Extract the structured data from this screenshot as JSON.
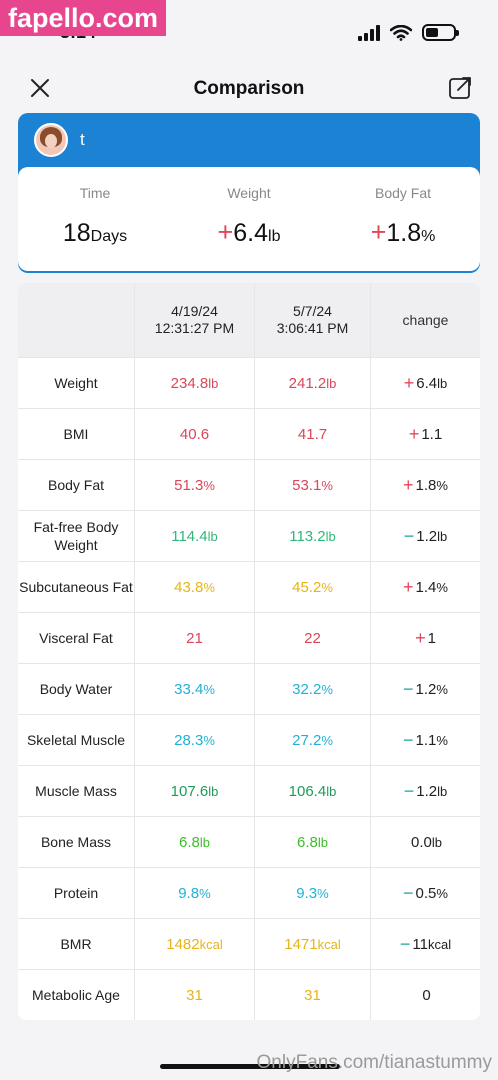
{
  "watermark_top": "fapello.com",
  "watermark_bottom": "OnlyFans.com/tianastummy",
  "status": {
    "time": "3:14"
  },
  "nav": {
    "title": "Comparison",
    "close_icon": "close-icon",
    "share_icon": "share-icon"
  },
  "user": {
    "name": "t"
  },
  "summary": [
    {
      "label": "Time",
      "value": "18",
      "sign": "",
      "unit": "Days"
    },
    {
      "label": "Weight",
      "value": "6.4",
      "sign": "+",
      "unit": "lb"
    },
    {
      "label": "Body Fat",
      "value": "1.8",
      "sign": "+",
      "unit": "%"
    }
  ],
  "table": {
    "header": {
      "date1": "4/19/24",
      "time1": "12:31:27 PM",
      "date2": "5/7/24",
      "time2": "3:06:41 PM",
      "change": "change"
    },
    "colors": {
      "red": "#d9475a",
      "green": "#2fb87a",
      "yellow": "#e6b517",
      "cyan": "#1fb2d6",
      "darkgreen": "#1f9a5a",
      "brightgreen": "#3cbf2a",
      "plus": "#e0485a",
      "minus": "#1aa89a"
    },
    "rows": [
      {
        "label": "Weight",
        "v1": "234.8",
        "v2": "241.2",
        "unit": "lb",
        "color": "red",
        "sign": "+",
        "change": "6.4",
        "change_unit": "lb"
      },
      {
        "label": "BMI",
        "v1": "40.6",
        "v2": "41.7",
        "unit": "",
        "color": "red",
        "sign": "+",
        "change": "1.1",
        "change_unit": ""
      },
      {
        "label": "Body Fat",
        "v1": "51.3",
        "v2": "53.1",
        "unit": "%",
        "color": "red",
        "sign": "+",
        "change": "1.8",
        "change_unit": "%"
      },
      {
        "label": "Fat-free Body Weight",
        "v1": "114.4",
        "v2": "113.2",
        "unit": "lb",
        "color": "green",
        "sign": "−",
        "change": "1.2",
        "change_unit": "lb"
      },
      {
        "label": "Subcutaneous Fat",
        "v1": "43.8",
        "v2": "45.2",
        "unit": "%",
        "color": "yellow",
        "sign": "+",
        "change": "1.4",
        "change_unit": "%"
      },
      {
        "label": "Visceral Fat",
        "v1": "21",
        "v2": "22",
        "unit": "",
        "color": "red",
        "sign": "+",
        "change": "1",
        "change_unit": ""
      },
      {
        "label": "Body Water",
        "v1": "33.4",
        "v2": "32.2",
        "unit": "%",
        "color": "cyan",
        "sign": "−",
        "change": "1.2",
        "change_unit": "%"
      },
      {
        "label": "Skeletal Muscle",
        "v1": "28.3",
        "v2": "27.2",
        "unit": "%",
        "color": "cyan",
        "sign": "−",
        "change": "1.1",
        "change_unit": "%"
      },
      {
        "label": "Muscle Mass",
        "v1": "107.6",
        "v2": "106.4",
        "unit": "lb",
        "color": "darkgreen",
        "sign": "−",
        "change": "1.2",
        "change_unit": "lb"
      },
      {
        "label": "Bone Mass",
        "v1": "6.8",
        "v2": "6.8",
        "unit": "lb",
        "color": "brightgreen",
        "sign": "",
        "change": "0.0",
        "change_unit": "lb"
      },
      {
        "label": "Protein",
        "v1": "9.8",
        "v2": "9.3",
        "unit": "%",
        "color": "cyan",
        "sign": "−",
        "change": "0.5",
        "change_unit": "%"
      },
      {
        "label": "BMR",
        "v1": "1482",
        "v2": "1471",
        "unit": "kcal",
        "color": "yellow",
        "sign": "−",
        "change": "11",
        "change_unit": "kcal"
      },
      {
        "label": "Metabolic Age",
        "v1": "31",
        "v2": "31",
        "unit": "",
        "color": "yellow",
        "sign": "",
        "change": "0",
        "change_unit": ""
      }
    ]
  }
}
